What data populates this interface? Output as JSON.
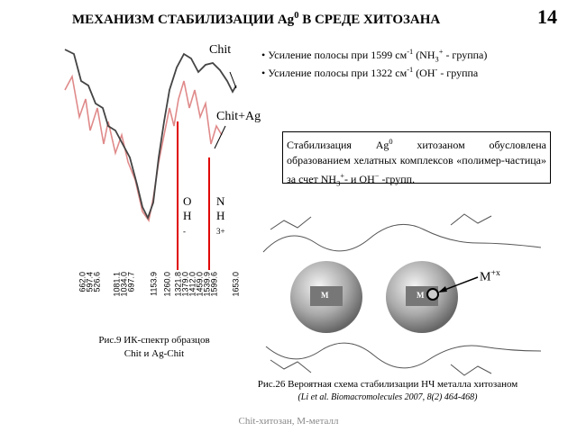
{
  "title": [
    {
      "text": "МЕХАНИЗМ СТАБИЛИЗАЦИИ Ag"
    },
    {
      "text": "0",
      "pos": "sup"
    },
    {
      "text": " В СРЕДЕ ХИТОЗАНА"
    }
  ],
  "page_number": "14",
  "spectrum": {
    "curve_labels": [
      "Chit",
      "Chit+Ag"
    ],
    "band_labels": [
      [
        "О",
        "Н",
        "-"
      ],
      [
        "N",
        "H",
        "3+"
      ]
    ],
    "wavenumbers": [
      "662.0",
      "597.4",
      "526.6",
      "1081.1",
      "1034.0",
      "697.7",
      "1153.9",
      "1260.0",
      "1321.8",
      "1379.0",
      "1412.0",
      "1459.0",
      "1539.9",
      "1599.6",
      "1653.0"
    ],
    "caption": [
      "Рис.9 ИК-спектр образцов",
      "Chit и Ag-Chit"
    ]
  },
  "bullets": [
    [
      {
        "text": "Усиление полосы при 1599 см"
      },
      {
        "text": "-1",
        "pos": "sup"
      },
      {
        "text": " (NH"
      },
      {
        "text": "3",
        "pos": "sub"
      },
      {
        "text": "+",
        "pos": "sup"
      },
      {
        "text": " - группа)"
      }
    ],
    [
      {
        "text": "Усиление полосы при 1322 см"
      },
      {
        "text": "-1",
        "pos": "sup"
      },
      {
        "text": " (OH"
      },
      {
        "text": "-",
        "pos": "sup"
      },
      {
        "text": " - группа"
      }
    ]
  ],
  "note": [
    {
      "text": "Стабилизация Ag"
    },
    {
      "text": "0",
      "pos": "sup"
    },
    {
      "text": " хитозаном обусловлена образованием хелатных комплексов «полимер-частица» за счет NH"
    },
    {
      "text": "3",
      "pos": "sub"
    },
    {
      "text": "+",
      "pos": "sup"
    },
    {
      "text": "- и OH"
    },
    {
      "text": "−",
      "pos": "sup"
    },
    {
      "text": " -групп."
    }
  ],
  "scheme": {
    "particle_labels": [
      "M",
      "M"
    ],
    "ion_label": [
      {
        "text": "M"
      },
      {
        "text": "+x",
        "pos": "sup"
      }
    ],
    "caption": "Рис.26 Вероятная схема стабилизации НЧ металла хитозаном",
    "reference": "(Li et al. Biomacromolecules 2007, 8(2) 464-468)"
  },
  "footer": "Chit-хитозан, М-металл"
}
